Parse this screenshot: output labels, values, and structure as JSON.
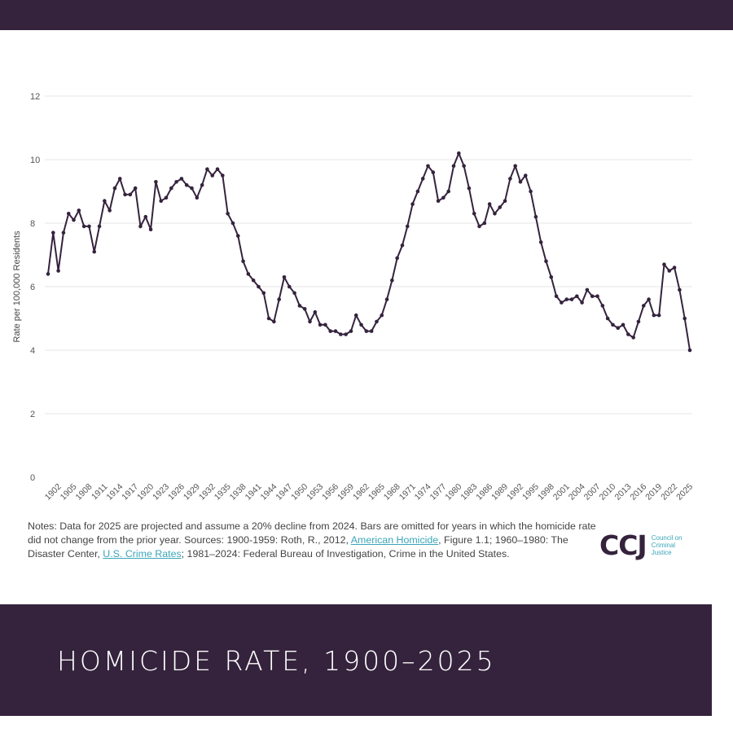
{
  "title": "HOMICIDE RATE, 1900–2025",
  "notes": {
    "part1": "Notes: Data for 2025 are projected and assume a 20% decline from 2024. Bars are omitted for years in which the homicide rate did not change from the prior year. Sources: 1900-1959: Roth, R., 2012, ",
    "link1": "American Homicide",
    "part2": ", Figure 1.1; 1960–1980: The Disaster Center, ",
    "link2": "U.S. Crime Rates",
    "part3": "; 1981–2024: Federal Bureau of Investigation, Crime in the United States."
  },
  "logo": {
    "mark": "CCJ",
    "text": "Council on Criminal Justice"
  },
  "colors": {
    "brand": "#35233d",
    "link": "#3aa6b9",
    "grid": "#e6e6e6"
  },
  "chart_data": {
    "type": "line",
    "title": "HOMICIDE RATE, 1900–2025",
    "xlabel": "",
    "ylabel": "Rate per 100,000 Residents",
    "ylim": [
      0,
      12
    ],
    "yticks": [
      "0",
      "2",
      "4",
      "6",
      "8",
      "10",
      "12"
    ],
    "xlim": [
      1900,
      2025
    ],
    "xtick_start": 1902,
    "xtick_step": 3,
    "grid": true,
    "series": [
      {
        "name": "Homicide rate",
        "x_start": 1900,
        "values": [
          6.4,
          7.7,
          6.5,
          7.7,
          8.3,
          8.1,
          8.4,
          7.9,
          7.9,
          7.1,
          7.9,
          8.7,
          8.4,
          9.1,
          9.4,
          8.9,
          8.9,
          9.1,
          7.9,
          8.2,
          7.8,
          9.3,
          8.7,
          8.8,
          9.1,
          9.3,
          9.4,
          9.2,
          9.1,
          8.8,
          9.2,
          9.7,
          9.5,
          9.7,
          9.5,
          8.3,
          8.0,
          7.6,
          6.8,
          6.4,
          6.2,
          6.0,
          5.8,
          5.0,
          4.9,
          5.6,
          6.3,
          6.0,
          5.8,
          5.4,
          5.3,
          4.9,
          5.2,
          4.8,
          4.8,
          4.6,
          4.6,
          4.5,
          4.5,
          4.6,
          5.1,
          4.8,
          4.6,
          4.6,
          4.9,
          5.1,
          5.6,
          6.2,
          6.9,
          7.3,
          7.9,
          8.6,
          9.0,
          9.4,
          9.8,
          9.6,
          8.7,
          8.8,
          9.0,
          9.8,
          10.2,
          9.8,
          9.1,
          8.3,
          7.9,
          8.0,
          8.6,
          8.3,
          8.5,
          8.7,
          9.4,
          9.8,
          9.3,
          9.5,
          9.0,
          8.2,
          7.4,
          6.8,
          6.3,
          5.7,
          5.5,
          5.6,
          5.6,
          5.7,
          5.5,
          5.9,
          5.7,
          5.7,
          5.4,
          5.0,
          4.8,
          4.7,
          4.8,
          4.5,
          4.4,
          4.9,
          5.4,
          5.6,
          5.1,
          5.1,
          6.7,
          6.5,
          6.6,
          5.9,
          5.0,
          4.0
        ]
      }
    ]
  }
}
